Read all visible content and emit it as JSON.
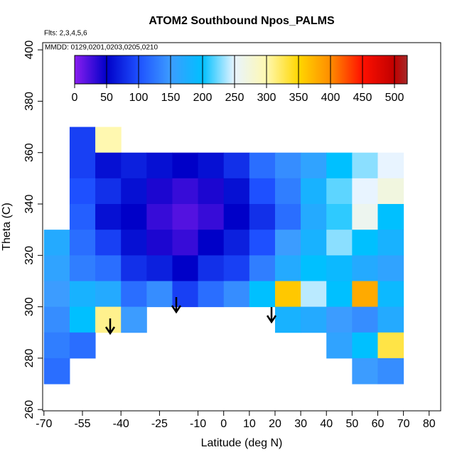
{
  "chart_data": {
    "type": "heatmap",
    "title": "ATOM2 Southbound Npos_PALMS",
    "annotations": [
      "Flts: 2,3,4,5,6",
      "MMDD: 0129,0201,0203,0205,0210"
    ],
    "x_label": "Latitude (deg N)",
    "y_label": "Theta (C)",
    "xlim": [
      -70.5,
      84.5
    ],
    "ylim": [
      259.5,
      402.8
    ],
    "xticks": [
      -70,
      -55,
      -40,
      -25,
      -10,
      0,
      10,
      20,
      30,
      40,
      50,
      60,
      70,
      80
    ],
    "yticks": [
      260,
      280,
      300,
      320,
      340,
      360,
      380,
      400
    ],
    "x": [
      -65,
      -55,
      -45,
      -35,
      -25,
      -15,
      -5,
      5,
      15,
      25,
      35,
      45,
      55,
      65
    ],
    "y": [
      365,
      355,
      345,
      335,
      325,
      315,
      305,
      295,
      285,
      275
    ],
    "cell_width": 10,
    "cell_height": 10,
    "z": [
      [
        null,
        90,
        300,
        null,
        null,
        null,
        null,
        null,
        null,
        null,
        null,
        null,
        null,
        null
      ],
      [
        null,
        90,
        60,
        70,
        60,
        50,
        60,
        80,
        120,
        140,
        160,
        200,
        230,
        250
      ],
      [
        null,
        100,
        80,
        60,
        40,
        30,
        40,
        60,
        100,
        130,
        180,
        220,
        250,
        270
      ],
      [
        null,
        110,
        60,
        50,
        30,
        20,
        30,
        50,
        80,
        120,
        170,
        210,
        260,
        200
      ],
      [
        170,
        120,
        90,
        60,
        40,
        30,
        50,
        70,
        100,
        150,
        180,
        230,
        200,
        180
      ],
      [
        160,
        130,
        120,
        80,
        70,
        50,
        80,
        90,
        130,
        170,
        200,
        190,
        170,
        160
      ],
      [
        150,
        180,
        170,
        120,
        140,
        90,
        120,
        140,
        200,
        360,
        240,
        200,
        380,
        190
      ],
      [
        140,
        200,
        310,
        150,
        null,
        null,
        null,
        null,
        null,
        180,
        170,
        150,
        140,
        170
      ],
      [
        130,
        120,
        null,
        null,
        null,
        null,
        null,
        null,
        null,
        null,
        null,
        160,
        200,
        330
      ],
      [
        120,
        null,
        null,
        null,
        null,
        null,
        null,
        null,
        null,
        null,
        null,
        null,
        150,
        140
      ]
    ],
    "colorbar_lim": [
      0,
      520
    ],
    "colorbar_ticks": [
      0,
      50,
      100,
      150,
      200,
      250,
      300,
      350,
      400,
      450,
      500
    ],
    "colorscale": [
      [
        0,
        "#8a1ef0"
      ],
      [
        50,
        "#0000c8"
      ],
      [
        100,
        "#1e50ff"
      ],
      [
        150,
        "#3c9cff"
      ],
      [
        200,
        "#00c0ff"
      ],
      [
        250,
        "#e8f4ff"
      ],
      [
        300,
        "#fff8b0"
      ],
      [
        350,
        "#ffd700"
      ],
      [
        400,
        "#ff8c00"
      ],
      [
        450,
        "#ff1000"
      ],
      [
        500,
        "#c00000"
      ],
      [
        520,
        "#a52a2a"
      ]
    ]
  }
}
